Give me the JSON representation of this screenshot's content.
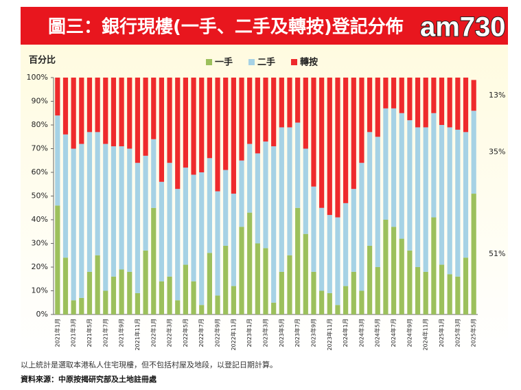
{
  "chart_data": {
    "type": "stacked_bar",
    "title": "圖三：銀行現樓(一手、二手及轉按)登記分佈",
    "logo": "am730",
    "y_label": "百分比",
    "categories": [
      "2021年1月",
      null,
      "2021年3月",
      null,
      "2021年5月",
      null,
      "2021年7月",
      null,
      "2021年9月",
      null,
      "2021年11月",
      null,
      "2022年1月",
      null,
      "2022年3月",
      null,
      "2022年5月",
      null,
      "2022年7月",
      null,
      "2022年9月",
      null,
      "2022年11月",
      null,
      "2023年1月",
      null,
      "2023年3月",
      null,
      "2023年5月",
      null,
      "2023年7月",
      null,
      "2023年9月",
      null,
      "2023年11月",
      null,
      "2024年1月",
      null,
      "2024年3月",
      null,
      "2024年5月",
      null,
      "2024年7月",
      null,
      "2024年9月",
      null,
      "2024年11月",
      null,
      "2025年1月",
      null,
      "2025年3月",
      null,
      "2025年5月"
    ],
    "series": [
      {
        "name": "一手",
        "color": "#9cc05c",
        "values": [
          46,
          24,
          6,
          7,
          18,
          25,
          10,
          16,
          19,
          18,
          9,
          27,
          45,
          14,
          16,
          6,
          21,
          14,
          4,
          26,
          8,
          29,
          12,
          37,
          43,
          30,
          28,
          5,
          18,
          25,
          45,
          34,
          18,
          10,
          9,
          4,
          12,
          18,
          10,
          29,
          20,
          40,
          37,
          32,
          27,
          20,
          18,
          41,
          21,
          17,
          16,
          24,
          51
        ],
        "value_labels": [
          null,
          null,
          null,
          null,
          null,
          null,
          null,
          null,
          null,
          null,
          null,
          null,
          null,
          null,
          null,
          null,
          null,
          null,
          null,
          null,
          null,
          null,
          null,
          null,
          null,
          null,
          null,
          null,
          null,
          null,
          null,
          null,
          null,
          null,
          null,
          null,
          null,
          null,
          null,
          null,
          null,
          null,
          null,
          null,
          null,
          null,
          null,
          null,
          null,
          null,
          null,
          null,
          "51%"
        ]
      },
      {
        "name": "二手",
        "color": "#a6d2e5",
        "values": [
          38,
          52,
          64,
          65,
          59,
          52,
          62,
          55,
          52,
          52,
          55,
          40,
          29,
          42,
          48,
          47,
          41,
          45,
          56,
          40,
          44,
          32,
          39,
          28,
          29,
          38,
          45,
          66,
          61,
          54,
          36,
          36,
          36,
          35,
          33,
          37,
          35,
          35,
          54,
          48,
          55,
          47,
          50,
          53,
          55,
          59,
          61,
          44,
          59,
          62,
          62,
          53,
          35
        ],
        "value_labels": [
          null,
          null,
          null,
          null,
          null,
          null,
          null,
          null,
          null,
          null,
          null,
          null,
          null,
          null,
          null,
          null,
          null,
          null,
          null,
          null,
          null,
          null,
          null,
          null,
          null,
          null,
          null,
          null,
          null,
          null,
          null,
          null,
          null,
          null,
          null,
          null,
          null,
          null,
          null,
          null,
          null,
          null,
          null,
          null,
          null,
          null,
          null,
          null,
          null,
          null,
          null,
          null,
          "35%"
        ]
      },
      {
        "name": "轉按",
        "color": "#ee2a2c",
        "values": [
          16,
          24,
          30,
          28,
          23,
          23,
          28,
          29,
          29,
          30,
          36,
          33,
          26,
          44,
          36,
          47,
          38,
          41,
          40,
          34,
          48,
          39,
          49,
          35,
          28,
          32,
          27,
          29,
          21,
          21,
          19,
          30,
          46,
          55,
          58,
          59,
          53,
          47,
          36,
          23,
          25,
          13,
          13,
          15,
          18,
          21,
          21,
          15,
          20,
          21,
          22,
          23,
          13
        ],
        "value_labels": [
          null,
          null,
          null,
          null,
          null,
          null,
          null,
          null,
          null,
          null,
          null,
          null,
          null,
          null,
          null,
          null,
          null,
          null,
          null,
          null,
          null,
          null,
          null,
          null,
          null,
          null,
          null,
          null,
          null,
          null,
          null,
          null,
          null,
          null,
          null,
          null,
          null,
          null,
          null,
          null,
          null,
          null,
          null,
          null,
          null,
          null,
          null,
          null,
          null,
          null,
          null,
          null,
          "13%"
        ]
      }
    ],
    "ylim": [
      0,
      100
    ],
    "yticks": [
      {
        "value": 0,
        "label": "0%"
      },
      {
        "value": 10,
        "label": "10%"
      },
      {
        "value": 20,
        "label": "20%"
      },
      {
        "value": 30,
        "label": "30%"
      },
      {
        "value": 40,
        "label": "40%"
      },
      {
        "value": 50,
        "label": "50%"
      },
      {
        "value": 60,
        "label": "60%"
      },
      {
        "value": 70,
        "label": "70%"
      },
      {
        "value": 80,
        "label": "80%"
      },
      {
        "value": 90,
        "label": "90%"
      },
      {
        "value": 100,
        "label": "100%"
      }
    ],
    "notes": [
      "以上統計是選取本港私人住宅現樓，但不包括村屋及地段，以登記日期計算。",
      "資料來源：中原按揭研究部及土地註冊處"
    ]
  }
}
